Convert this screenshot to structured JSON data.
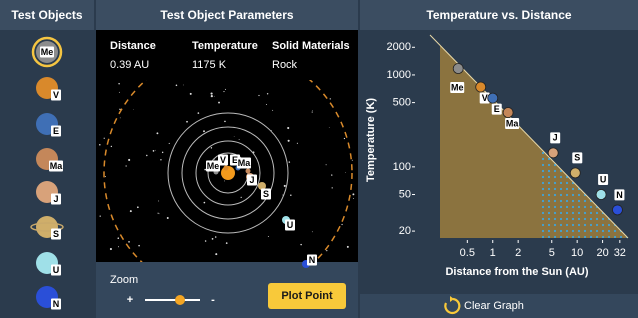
{
  "headers": {
    "objects": "Test Objects",
    "parameters": "Test Object Parameters",
    "graph": "Temperature vs. Distance"
  },
  "objects": [
    "Me",
    "V",
    "E",
    "Ma",
    "J",
    "S",
    "U",
    "N"
  ],
  "parameters": {
    "columns": [
      "Distance",
      "Temperature",
      "Solid Materials"
    ],
    "values": [
      "0.39 AU",
      "1175 K",
      "Rock"
    ]
  },
  "controls": {
    "zoom": "Zoom",
    "zoom_in": "+",
    "zoom_out": "-",
    "plot_button": "Plot Point",
    "clear_button": "Clear Graph"
  },
  "chart_data": {
    "type": "scatter",
    "xlabel": "Distance from the Sun (AU)",
    "ylabel": "Temperature (K)",
    "x": [
      0.39,
      0.72,
      1.0,
      1.52,
      5.2,
      9.5,
      19.2,
      30
    ],
    "values": [
      1175,
      740,
      560,
      390,
      142,
      86,
      50,
      34
    ],
    "colors": [
      "#8c8c8c",
      "#d9892b",
      "#3f6fb5",
      "#c4875a",
      "#d8a27a",
      "#cfae6a",
      "#9fe0e8",
      "#2a4fd8"
    ],
    "xscale": "log",
    "yscale": "log",
    "xlim": [
      0.12,
      40
    ],
    "ylim": [
      16,
      2400
    ],
    "xticks": [
      0.5,
      1,
      2,
      5,
      10,
      20,
      32
    ],
    "yticks": [
      2000,
      1000,
      500,
      100,
      50,
      20
    ]
  }
}
